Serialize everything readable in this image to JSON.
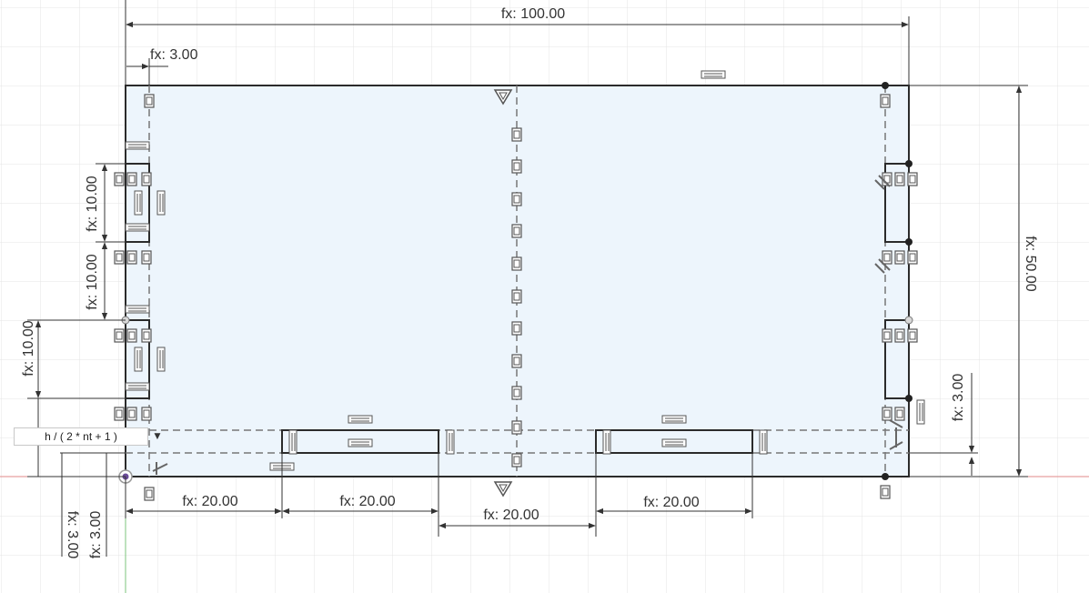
{
  "dimensions": {
    "overall_width": "fx: 100.00",
    "offset_top_left": "fx: 3.00",
    "overall_height": "fx: 50.00",
    "left_slot_1": "fx: 10.00",
    "left_slot_2": "fx: 10.00",
    "left_outer": "fx: 10.00",
    "bottom_1": "fx: 20.00",
    "bottom_2": "fx: 20.00",
    "bottom_3": "fx: 20.00",
    "bottom_4": "fx: 20.00",
    "right_offset": "fx: 3.00",
    "bottom_left_offset_1": "fx: 3.00",
    "bottom_left_offset_2": "fx: 3.00"
  },
  "expression_input": {
    "value": "h / ( 2 * nt + 1 )",
    "dropdown_icon": "caret-down-icon"
  },
  "colors": {
    "sketch_fill": "#edf5fc",
    "line": "#2b2b2b",
    "grid": "#e4e4e4",
    "x_axis": "#d9534f",
    "y_axis": "#5cb85c"
  }
}
